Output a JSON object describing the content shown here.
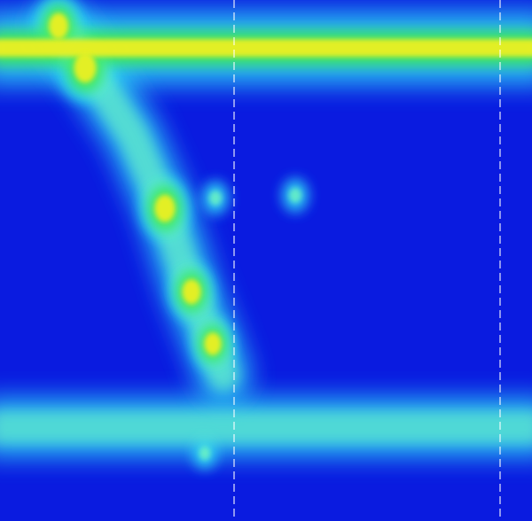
{
  "chart_data": {
    "type": "heatmap",
    "title": "",
    "xlabel": "",
    "ylabel": "",
    "colorscale": [
      "#0a1be0",
      "#1a5cf0",
      "#2fd3f5",
      "#6ff5c0",
      "#3ee85a",
      "#ecf020",
      "#f5f56a"
    ],
    "background_color": "#0a1be0",
    "xlim": [
      0,
      1
    ],
    "ylim": [
      0,
      1
    ],
    "markers": {
      "vertical_dashed_lines_x": [
        0.44,
        0.94
      ],
      "line_color": "#ffffff"
    },
    "features": [
      {
        "name": "upper-band",
        "kind": "band",
        "y": 0.092,
        "x0": 0.0,
        "x1": 1.0,
        "intensity": 0.9
      },
      {
        "name": "lower-band",
        "kind": "band",
        "y": 0.82,
        "x0": 0.0,
        "x1": 1.0,
        "intensity": 0.45
      },
      {
        "name": "diagonal-trace",
        "kind": "trace",
        "points": [
          [
            0.11,
            0.05
          ],
          [
            0.16,
            0.12
          ],
          [
            0.25,
            0.26
          ],
          [
            0.31,
            0.4
          ],
          [
            0.36,
            0.56
          ],
          [
            0.4,
            0.66
          ],
          [
            0.42,
            0.72
          ]
        ],
        "intensity": 0.55
      },
      {
        "name": "hotspot-1",
        "kind": "spot",
        "x": 0.11,
        "y": 0.05,
        "intensity": 0.85
      },
      {
        "name": "hotspot-2",
        "kind": "spot",
        "x": 0.16,
        "y": 0.13,
        "intensity": 1.0
      },
      {
        "name": "hotspot-3",
        "kind": "spot",
        "x": 0.31,
        "y": 0.4,
        "intensity": 0.9
      },
      {
        "name": "hotspot-4",
        "kind": "spot",
        "x": 0.36,
        "y": 0.56,
        "intensity": 0.8
      },
      {
        "name": "hotspot-5",
        "kind": "spot",
        "x": 0.4,
        "y": 0.66,
        "intensity": 0.7
      },
      {
        "name": "small-spot-1",
        "kind": "spot",
        "x": 0.405,
        "y": 0.38,
        "intensity": 0.35
      },
      {
        "name": "small-spot-2",
        "kind": "spot",
        "x": 0.555,
        "y": 0.375,
        "intensity": 0.35
      },
      {
        "name": "small-spot-3",
        "kind": "spot",
        "x": 0.385,
        "y": 0.87,
        "intensity": 0.3
      }
    ]
  }
}
